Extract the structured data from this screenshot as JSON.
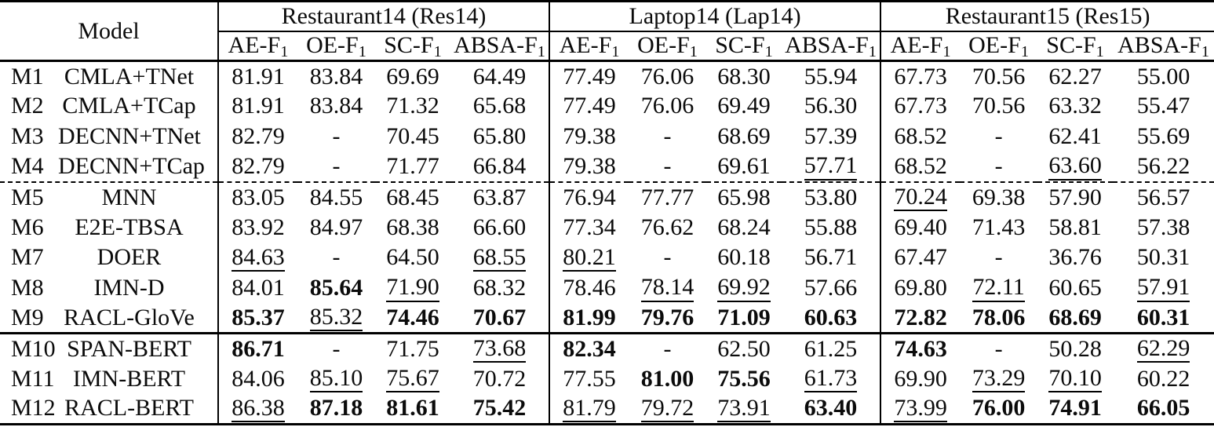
{
  "table": {
    "model_header": "Model",
    "groups": [
      {
        "label": "Restaurant14 (Res14)",
        "subcols": [
          {
            "text": "AE-F",
            "sub": "1"
          },
          {
            "text": "OE-F",
            "sub": "1"
          },
          {
            "text": "SC-F",
            "sub": "1"
          },
          {
            "text": "ABSA-F",
            "sub": "1"
          }
        ]
      },
      {
        "label": "Laptop14 (Lap14)",
        "subcols": [
          {
            "text": "AE-F",
            "sub": "1"
          },
          {
            "text": "OE-F",
            "sub": "1"
          },
          {
            "text": "SC-F",
            "sub": "1"
          },
          {
            "text": "ABSA-F",
            "sub": "1"
          }
        ]
      },
      {
        "label": "Restaurant15 (Res15)",
        "subcols": [
          {
            "text": "AE-F",
            "sub": "1"
          },
          {
            "text": "OE-F",
            "sub": "1"
          },
          {
            "text": "SC-F",
            "sub": "1"
          },
          {
            "text": "ABSA-F",
            "sub": "1"
          }
        ]
      }
    ],
    "rows": [
      {
        "id": "M1",
        "model": "CMLA+TNet",
        "sep": "",
        "values": [
          "81.91",
          "83.84",
          "69.69",
          "64.49",
          "77.49",
          "76.06",
          "68.30",
          "55.94",
          "67.73",
          "70.56",
          "62.27",
          "55.00"
        ],
        "fmt": [
          "",
          "",
          "",
          "",
          "",
          "",
          "",
          "",
          "",
          "",
          "",
          ""
        ]
      },
      {
        "id": "M2",
        "model": "CMLA+TCap",
        "sep": "",
        "values": [
          "81.91",
          "83.84",
          "71.32",
          "65.68",
          "77.49",
          "76.06",
          "69.49",
          "56.30",
          "67.73",
          "70.56",
          "63.32",
          "55.47"
        ],
        "fmt": [
          "",
          "",
          "",
          "",
          "",
          "",
          "",
          "",
          "",
          "",
          "",
          ""
        ]
      },
      {
        "id": "M3",
        "model": "DECNN+TNet",
        "sep": "",
        "values": [
          "82.79",
          "-",
          "70.45",
          "65.80",
          "79.38",
          "-",
          "68.69",
          "57.39",
          "68.52",
          "-",
          "62.41",
          "55.69"
        ],
        "fmt": [
          "",
          "",
          "",
          "",
          "",
          "",
          "",
          "",
          "",
          "",
          "",
          ""
        ]
      },
      {
        "id": "M4",
        "model": "DECNN+TCap",
        "sep": "",
        "values": [
          "82.79",
          "-",
          "71.77",
          "66.84",
          "79.38",
          "-",
          "69.61",
          "57.71",
          "68.52",
          "-",
          "63.60",
          "56.22"
        ],
        "fmt": [
          "",
          "",
          "",
          "",
          "",
          "",
          "",
          "u",
          "",
          "",
          "u",
          ""
        ]
      },
      {
        "id": "M5",
        "model": "MNN",
        "sep": "dashed",
        "values": [
          "83.05",
          "84.55",
          "68.45",
          "63.87",
          "76.94",
          "77.77",
          "65.98",
          "53.80",
          "70.24",
          "69.38",
          "57.90",
          "56.57"
        ],
        "fmt": [
          "",
          "",
          "",
          "",
          "",
          "",
          "",
          "",
          "u",
          "",
          "",
          ""
        ]
      },
      {
        "id": "M6",
        "model": "E2E-TBSA",
        "sep": "",
        "values": [
          "83.92",
          "84.97",
          "68.38",
          "66.60",
          "77.34",
          "76.62",
          "68.24",
          "55.88",
          "69.40",
          "71.43",
          "58.81",
          "57.38"
        ],
        "fmt": [
          "",
          "",
          "",
          "",
          "",
          "",
          "",
          "",
          "",
          "",
          "",
          ""
        ]
      },
      {
        "id": "M7",
        "model": "DOER",
        "sep": "",
        "values": [
          "84.63",
          "-",
          "64.50",
          "68.55",
          "80.21",
          "-",
          "60.18",
          "56.71",
          "67.47",
          "-",
          "36.76",
          "50.31"
        ],
        "fmt": [
          "u",
          "",
          "",
          "u",
          "u",
          "",
          "",
          "",
          "",
          "",
          "",
          ""
        ]
      },
      {
        "id": "M8",
        "model": "IMN-D",
        "sep": "",
        "values": [
          "84.01",
          "85.64",
          "71.90",
          "68.32",
          "78.46",
          "78.14",
          "69.92",
          "57.66",
          "69.80",
          "72.11",
          "60.65",
          "57.91"
        ],
        "fmt": [
          "",
          "b",
          "u",
          "",
          "",
          "u",
          "u",
          "",
          "",
          "u",
          "",
          "u"
        ]
      },
      {
        "id": "M9",
        "model": "RACL-GloVe",
        "sep": "",
        "values": [
          "85.37",
          "85.32",
          "74.46",
          "70.67",
          "81.99",
          "79.76",
          "71.09",
          "60.63",
          "72.82",
          "78.06",
          "68.69",
          "60.31"
        ],
        "fmt": [
          "b",
          "u",
          "b",
          "b",
          "b",
          "b",
          "b",
          "b",
          "b",
          "b",
          "b",
          "b"
        ]
      },
      {
        "id": "M10",
        "model": "SPAN-BERT",
        "sep": "solid",
        "values": [
          "86.71",
          "-",
          "71.75",
          "73.68",
          "82.34",
          "-",
          "62.50",
          "61.25",
          "74.63",
          "-",
          "50.28",
          "62.29"
        ],
        "fmt": [
          "b",
          "",
          "",
          "u",
          "b",
          "",
          "",
          "",
          "b",
          "",
          "",
          "u"
        ]
      },
      {
        "id": "M11",
        "model": "IMN-BERT",
        "sep": "",
        "values": [
          "84.06",
          "85.10",
          "75.67",
          "70.72",
          "77.55",
          "81.00",
          "75.56",
          "61.73",
          "69.90",
          "73.29",
          "70.10",
          "60.22"
        ],
        "fmt": [
          "",
          "u",
          "u",
          "",
          "",
          "b",
          "b",
          "u",
          "",
          "u",
          "u",
          ""
        ]
      },
      {
        "id": "M12",
        "model": "RACL-BERT",
        "sep": "",
        "values": [
          "86.38",
          "87.18",
          "81.61",
          "75.42",
          "81.79",
          "79.72",
          "73.91",
          "63.40",
          "73.99",
          "76.00",
          "74.91",
          "66.05"
        ],
        "fmt": [
          "u",
          "b",
          "b",
          "b",
          "u",
          "u",
          "u",
          "b",
          "u",
          "b",
          "b",
          "b"
        ]
      }
    ]
  }
}
